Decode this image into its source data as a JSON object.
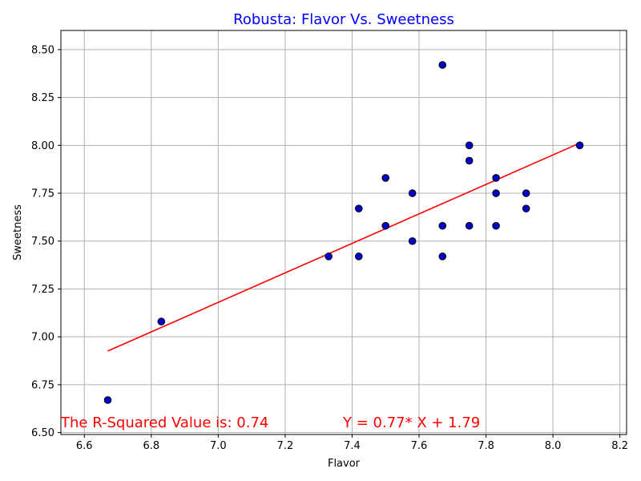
{
  "chart_data": {
    "type": "scatter",
    "title": "Robusta: Flavor Vs. Sweetness",
    "title_color": "#0000ff",
    "xlabel": "Flavor",
    "ylabel": "Sweetness",
    "xlim": [
      6.53,
      8.22
    ],
    "ylim": [
      6.49,
      8.6
    ],
    "xticks": [
      6.6,
      6.8,
      7.0,
      7.2,
      7.4,
      7.6,
      7.8,
      8.0,
      8.2
    ],
    "xtick_labels": [
      "6.6",
      "6.8",
      "7.0",
      "7.2",
      "7.4",
      "7.6",
      "7.8",
      "8.0",
      "8.2"
    ],
    "yticks": [
      6.5,
      6.75,
      7.0,
      7.25,
      7.5,
      7.75,
      8.0,
      8.25,
      8.5
    ],
    "ytick_labels": [
      "6.50",
      "6.75",
      "7.00",
      "7.25",
      "7.50",
      "7.75",
      "8.00",
      "8.25",
      "8.50"
    ],
    "grid": true,
    "point_color": "#0000cc",
    "point_edge_color": "#000000",
    "line_color": "#ff0000",
    "points": [
      {
        "x": 6.67,
        "y": 6.67
      },
      {
        "x": 6.83,
        "y": 7.08
      },
      {
        "x": 7.33,
        "y": 7.42
      },
      {
        "x": 7.42,
        "y": 7.42
      },
      {
        "x": 7.42,
        "y": 7.67
      },
      {
        "x": 7.5,
        "y": 7.58
      },
      {
        "x": 7.5,
        "y": 7.83
      },
      {
        "x": 7.58,
        "y": 7.5
      },
      {
        "x": 7.58,
        "y": 7.75
      },
      {
        "x": 7.67,
        "y": 7.42
      },
      {
        "x": 7.67,
        "y": 7.58
      },
      {
        "x": 7.67,
        "y": 8.42
      },
      {
        "x": 7.75,
        "y": 7.58
      },
      {
        "x": 7.75,
        "y": 7.92
      },
      {
        "x": 7.75,
        "y": 8.0
      },
      {
        "x": 7.83,
        "y": 7.58
      },
      {
        "x": 7.83,
        "y": 7.75
      },
      {
        "x": 7.83,
        "y": 7.83
      },
      {
        "x": 7.92,
        "y": 7.67
      },
      {
        "x": 7.92,
        "y": 7.75
      },
      {
        "x": 8.08,
        "y": 8.0
      }
    ],
    "regression": {
      "slope": 0.77,
      "intercept": 1.79,
      "x_start": 6.67,
      "x_end": 8.08
    },
    "annotations": {
      "r_squared_text": "The R-Squared Value is: 0.74",
      "equation_text": "Y = 0.77* X + 1.79",
      "color": "#ff0000"
    }
  }
}
